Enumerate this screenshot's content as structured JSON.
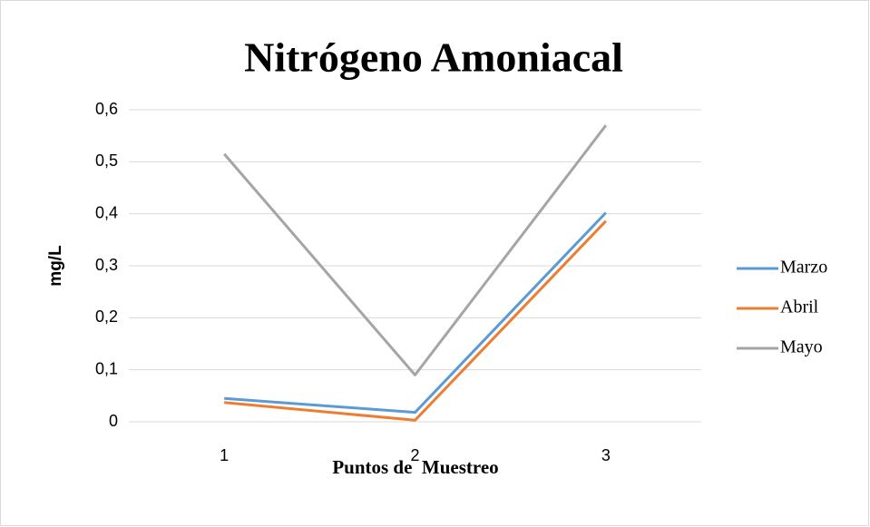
{
  "chart_data": {
    "type": "line",
    "title": "Nitrógeno Amoniacal",
    "x_label": "Puntos de  Muestreo",
    "y_label": "mg/L",
    "categories": [
      "1",
      "2",
      "3"
    ],
    "series": [
      {
        "name": "Marzo",
        "color": "#5b9bd5",
        "values": [
          0.045,
          0.018,
          0.402
        ]
      },
      {
        "name": "Abril",
        "color": "#ed7d31",
        "values": [
          0.037,
          0.003,
          0.386
        ]
      },
      {
        "name": "Mayo",
        "color": "#a5a5a5",
        "values": [
          0.515,
          0.09,
          0.57
        ]
      }
    ],
    "ylim": [
      0,
      0.6
    ],
    "yticks": [
      0,
      {
        "value": 0.1,
        "label": "0,1"
      },
      {
        "value": 0.2,
        "label": "0,2"
      },
      {
        "value": 0.3,
        "label": "0,3"
      },
      {
        "value": 0.4,
        "label": "0,4"
      },
      {
        "value": 0.5,
        "label": "0,5"
      },
      {
        "value": 0.6,
        "label": "0,6"
      }
    ],
    "grid": true,
    "legend": "right"
  }
}
